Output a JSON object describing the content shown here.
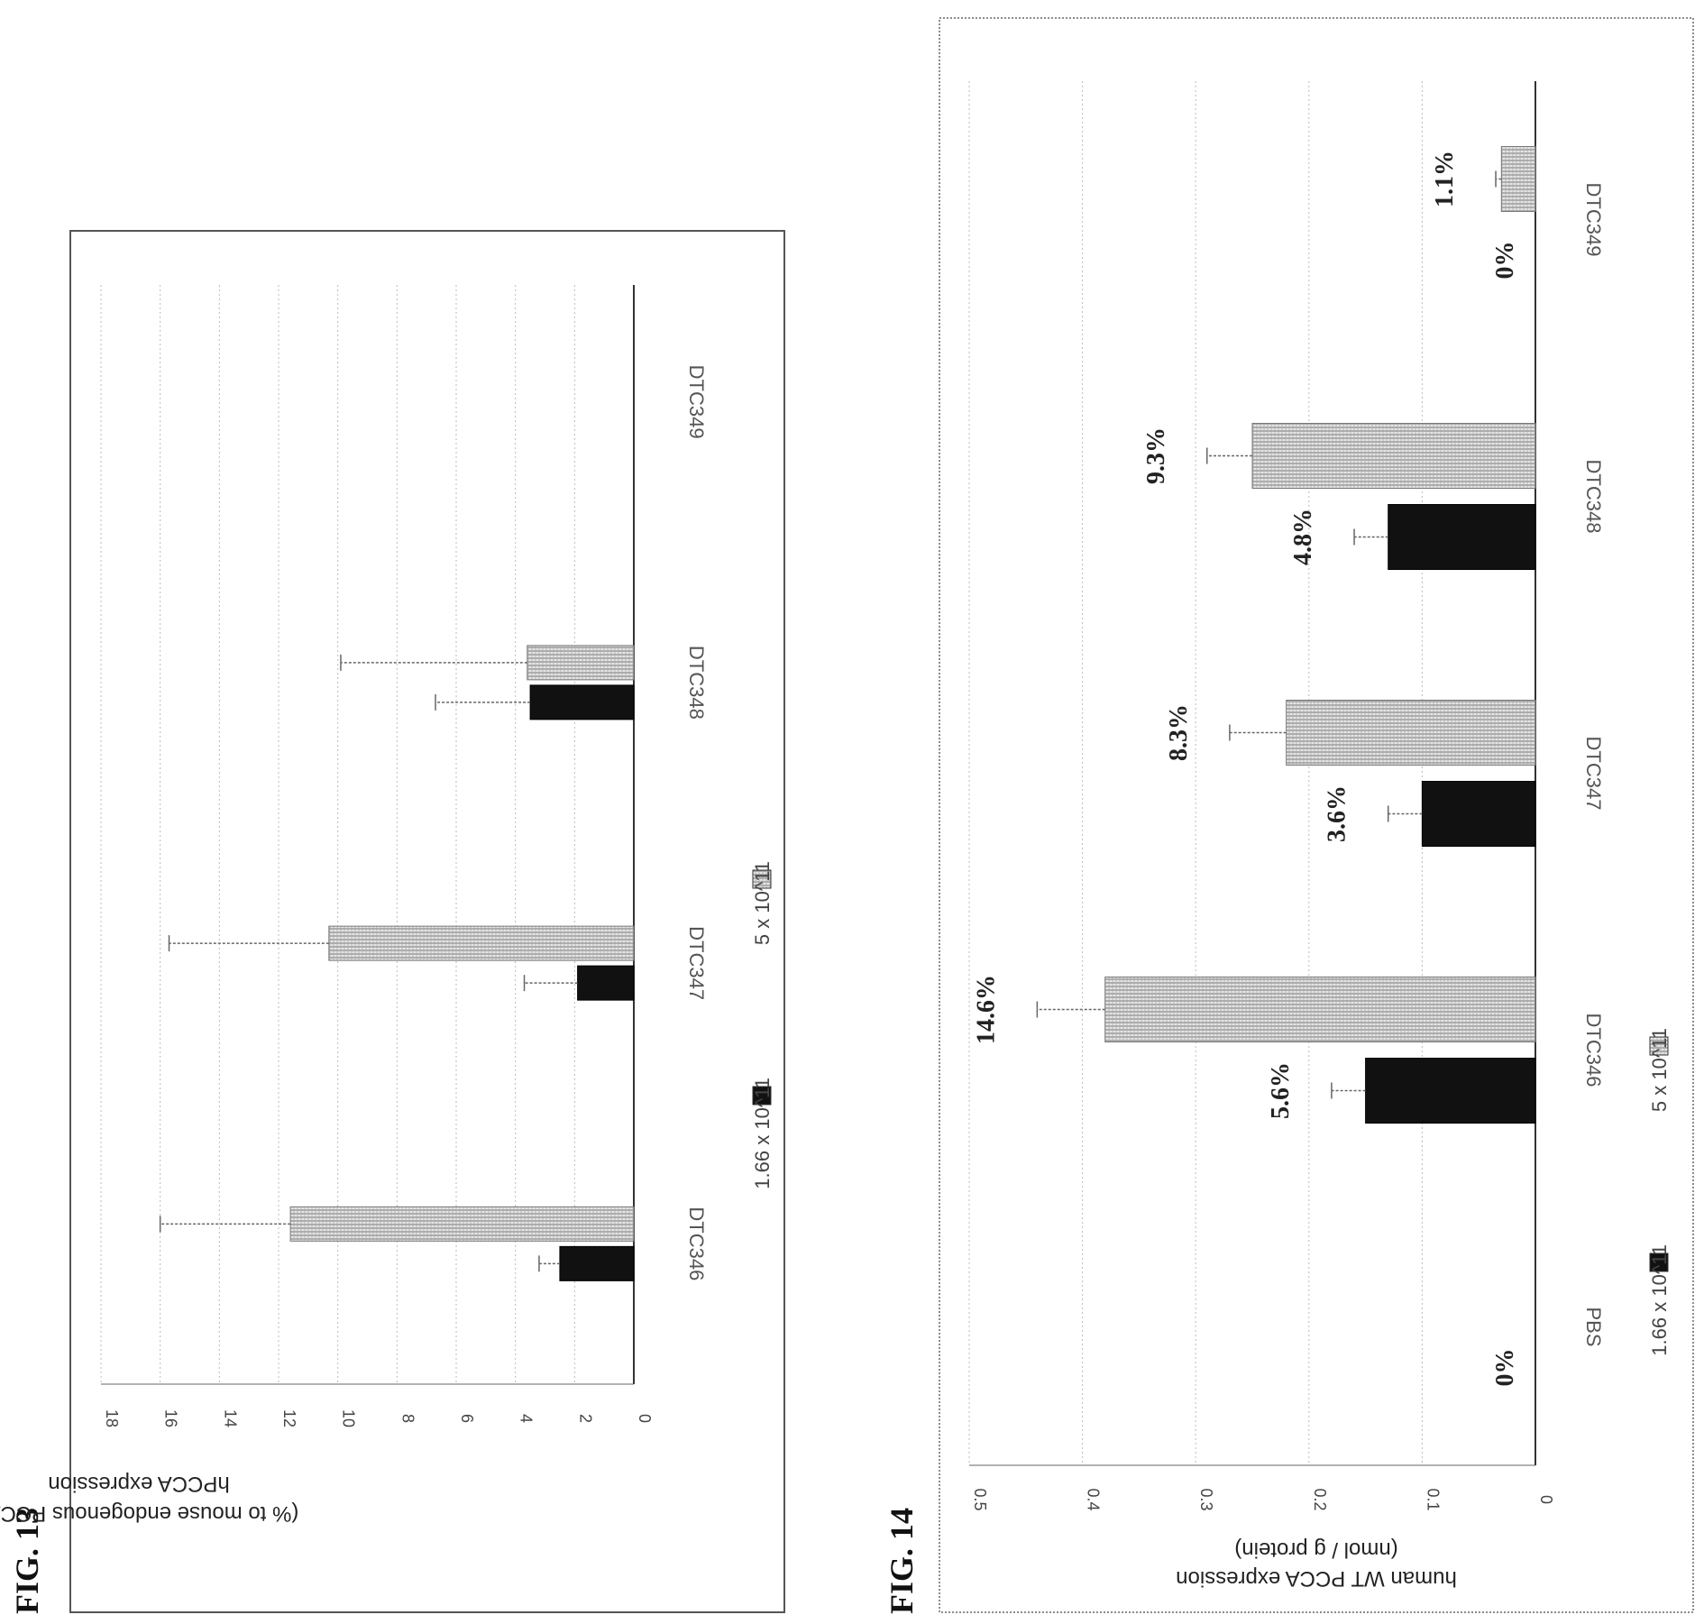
{
  "chart_data": [
    {
      "figure": "FIG. 13",
      "type": "bar",
      "orientation": "rotated-90-ccw",
      "ylabel": "hPCCA expression",
      "ylabel2": "(% to mouse endogenous PCCA)",
      "ylim": [
        0,
        18
      ],
      "yticks": [
        "0",
        "2",
        "4",
        "6",
        "8",
        "10",
        "12",
        "14",
        "16",
        "18"
      ],
      "categories": [
        "DTC346",
        "DTC347",
        "DTC348",
        "DTC349"
      ],
      "series": [
        {
          "name": "1.66 x 10^11",
          "color": "#111111",
          "pattern": "solid",
          "values": [
            2.5,
            1.9,
            3.5,
            0
          ],
          "errors": [
            0.7,
            1.8,
            3.2,
            0
          ]
        },
        {
          "name": "5 x 10^11",
          "color": "#bbbbbb",
          "pattern": "hatched",
          "values": [
            11.6,
            10.3,
            3.6,
            0
          ],
          "errors": [
            4.4,
            5.4,
            6.3,
            0
          ]
        }
      ],
      "grid": true,
      "legend": "bottom"
    },
    {
      "figure": "FIG. 14",
      "type": "bar",
      "orientation": "rotated-90-ccw",
      "ylabel": "human WT PCCA expression",
      "ylabel2": "(nmol / g protein)",
      "ylim": [
        0,
        0.5
      ],
      "yticks": [
        "0",
        "0.1",
        "0.2",
        "0.3",
        "0.4",
        "0.5"
      ],
      "categories": [
        "PBS",
        "DTC346",
        "DTC347",
        "DTC348",
        "DTC349"
      ],
      "series": [
        {
          "name": "1.66 x 10^11",
          "color": "#111111",
          "pattern": "solid",
          "values": [
            0,
            0.15,
            0.1,
            0.13,
            0
          ],
          "errors": [
            0,
            0.03,
            0.03,
            0.03,
            0
          ],
          "data_labels": [
            "0%",
            "5.6%",
            "3.6%",
            "4.8%",
            "0%"
          ]
        },
        {
          "name": "5 x 10^11",
          "color": "#bbbbbb",
          "pattern": "hatched",
          "values": [
            0,
            0.38,
            0.22,
            0.25,
            0.03
          ],
          "errors": [
            0,
            0.06,
            0.05,
            0.04,
            0.005
          ],
          "data_labels": [
            "",
            "14.6%",
            "8.3%",
            "9.3%",
            "1.1%"
          ]
        }
      ],
      "grid": true,
      "legend": "bottom"
    }
  ]
}
